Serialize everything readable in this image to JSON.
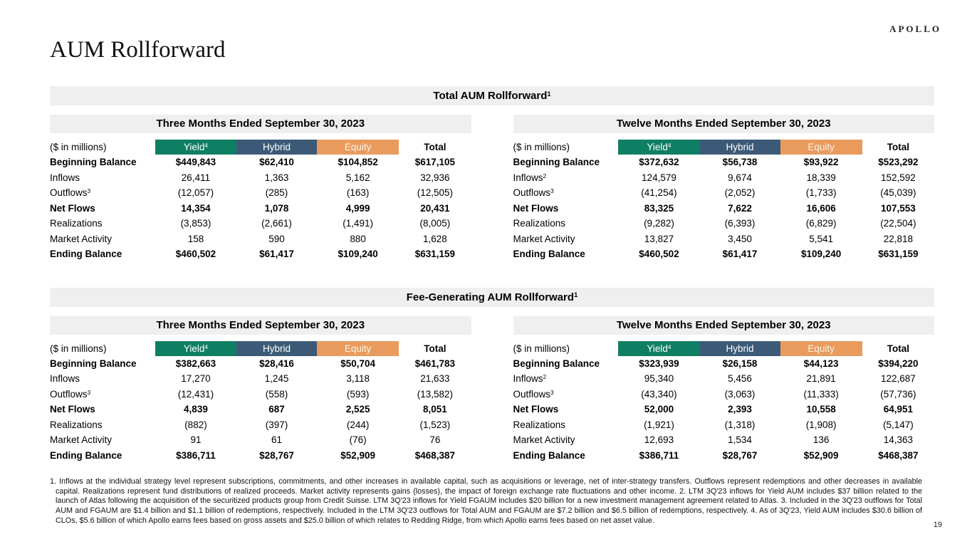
{
  "logo": "APOLLO",
  "page": {
    "title": "AUM Rollforward",
    "number": "19"
  },
  "colors": {
    "yield": "#0f7f64",
    "hybrid": "#3c5a77",
    "equity": "#e99b5e",
    "bar_gray": "#efefef",
    "equity_text": "#fbf4e4"
  },
  "sections": [
    {
      "title": "Total AUM Rollforward",
      "title_sup": "1",
      "tables": [
        {
          "period": "Three Months Ended September 30, 2023",
          "unit_label": "($ in millions)",
          "columns": [
            {
              "label": "Yield",
              "sup": "4",
              "color": "#0f7f64",
              "text_color": "#ffffff"
            },
            {
              "label": "Hybrid",
              "sup": "",
              "color": "#3c5a77",
              "text_color": "#ffffff"
            },
            {
              "label": "Equity",
              "sup": "",
              "color": "#e99b5e",
              "text_color": "#fbf4e4"
            },
            {
              "label": "Total",
              "sup": "",
              "color": "",
              "text_color": ""
            }
          ],
          "rows": [
            {
              "label": "Beginning Balance",
              "sup": "",
              "bold": true,
              "values": [
                "$449,843",
                "$62,410",
                "$104,852",
                "$617,105"
              ]
            },
            {
              "label": "Inflows",
              "sup": "",
              "bold": false,
              "values": [
                "26,411",
                "1,363",
                "5,162",
                "32,936"
              ]
            },
            {
              "label": "Outflows",
              "sup": "3",
              "bold": false,
              "values": [
                "(12,057)",
                "(285)",
                "(163)",
                "(12,505)"
              ]
            },
            {
              "label": "Net Flows",
              "sup": "",
              "bold": true,
              "values": [
                "14,354",
                "1,078",
                "4,999",
                "20,431"
              ]
            },
            {
              "label": "Realizations",
              "sup": "",
              "bold": false,
              "values": [
                "(3,853)",
                "(2,661)",
                "(1,491)",
                "(8,005)"
              ]
            },
            {
              "label": "Market Activity",
              "sup": "",
              "bold": false,
              "values": [
                "158",
                "590",
                "880",
                "1,628"
              ]
            },
            {
              "label": "Ending Balance",
              "sup": "",
              "bold": true,
              "values": [
                "$460,502",
                "$61,417",
                "$109,240",
                "$631,159"
              ]
            }
          ]
        },
        {
          "period": "Twelve Months Ended September 30, 2023",
          "unit_label": "($ in millions)",
          "columns": [
            {
              "label": "Yield",
              "sup": "4",
              "color": "#0f7f64",
              "text_color": "#ffffff"
            },
            {
              "label": "Hybrid",
              "sup": "",
              "color": "#3c5a77",
              "text_color": "#ffffff"
            },
            {
              "label": "Equity",
              "sup": "",
              "color": "#e99b5e",
              "text_color": "#fbf4e4"
            },
            {
              "label": "Total",
              "sup": "",
              "color": "",
              "text_color": ""
            }
          ],
          "rows": [
            {
              "label": "Beginning Balance",
              "sup": "",
              "bold": true,
              "values": [
                "$372,632",
                "$56,738",
                "$93,922",
                "$523,292"
              ]
            },
            {
              "label": "Inflows",
              "sup": "2",
              "bold": false,
              "values": [
                "124,579",
                "9,674",
                "18,339",
                "152,592"
              ]
            },
            {
              "label": "Outflows",
              "sup": "3",
              "bold": false,
              "values": [
                "(41,254)",
                "(2,052)",
                "(1,733)",
                "(45,039)"
              ]
            },
            {
              "label": "Net Flows",
              "sup": "",
              "bold": true,
              "values": [
                "83,325",
                "7,622",
                "16,606",
                "107,553"
              ]
            },
            {
              "label": "Realizations",
              "sup": "",
              "bold": false,
              "values": [
                "(9,282)",
                "(6,393)",
                "(6,829)",
                "(22,504)"
              ]
            },
            {
              "label": "Market Activity",
              "sup": "",
              "bold": false,
              "values": [
                "13,827",
                "3,450",
                "5,541",
                "22,818"
              ]
            },
            {
              "label": "Ending Balance",
              "sup": "",
              "bold": true,
              "values": [
                "$460,502",
                "$61,417",
                "$109,240",
                "$631,159"
              ]
            }
          ]
        }
      ]
    },
    {
      "title": "Fee-Generating AUM Rollforward",
      "title_sup": "1",
      "tables": [
        {
          "period": "Three Months Ended September 30, 2023",
          "unit_label": "($ in millions)",
          "columns": [
            {
              "label": "Yield",
              "sup": "4",
              "color": "#0f7f64",
              "text_color": "#ffffff"
            },
            {
              "label": "Hybrid",
              "sup": "",
              "color": "#3c5a77",
              "text_color": "#ffffff"
            },
            {
              "label": "Equity",
              "sup": "",
              "color": "#e99b5e",
              "text_color": "#fbf4e4"
            },
            {
              "label": "Total",
              "sup": "",
              "color": "",
              "text_color": ""
            }
          ],
          "rows": [
            {
              "label": "Beginning Balance",
              "sup": "",
              "bold": true,
              "values": [
                "$382,663",
                "$28,416",
                "$50,704",
                "$461,783"
              ]
            },
            {
              "label": "Inflows",
              "sup": "",
              "bold": false,
              "values": [
                "17,270",
                "1,245",
                "3,118",
                "21,633"
              ]
            },
            {
              "label": "Outflows",
              "sup": "3",
              "bold": false,
              "values": [
                "(12,431)",
                "(558)",
                "(593)",
                "(13,582)"
              ]
            },
            {
              "label": "Net Flows",
              "sup": "",
              "bold": true,
              "values": [
                "4,839",
                "687",
                "2,525",
                "8,051"
              ]
            },
            {
              "label": "Realizations",
              "sup": "",
              "bold": false,
              "values": [
                "(882)",
                "(397)",
                "(244)",
                "(1,523)"
              ]
            },
            {
              "label": "Market Activity",
              "sup": "",
              "bold": false,
              "values": [
                "91",
                "61",
                "(76)",
                "76"
              ]
            },
            {
              "label": "Ending Balance",
              "sup": "",
              "bold": true,
              "values": [
                "$386,711",
                "$28,767",
                "$52,909",
                "$468,387"
              ]
            }
          ]
        },
        {
          "period": "Twelve Months Ended September 30, 2023",
          "unit_label": "($ in millions)",
          "columns": [
            {
              "label": "Yield",
              "sup": "4",
              "color": "#0f7f64",
              "text_color": "#ffffff"
            },
            {
              "label": "Hybrid",
              "sup": "",
              "color": "#3c5a77",
              "text_color": "#ffffff"
            },
            {
              "label": "Equity",
              "sup": "",
              "color": "#e99b5e",
              "text_color": "#fbf4e4"
            },
            {
              "label": "Total",
              "sup": "",
              "color": "",
              "text_color": ""
            }
          ],
          "rows": [
            {
              "label": "Beginning Balance",
              "sup": "",
              "bold": true,
              "values": [
                "$323,939",
                "$26,158",
                "$44,123",
                "$394,220"
              ]
            },
            {
              "label": "Inflows",
              "sup": "2",
              "bold": false,
              "values": [
                "95,340",
                "5,456",
                "21,891",
                "122,687"
              ]
            },
            {
              "label": "Outflows",
              "sup": "3",
              "bold": false,
              "values": [
                "(43,340)",
                "(3,063)",
                "(11,333)",
                "(57,736)"
              ]
            },
            {
              "label": "Net Flows",
              "sup": "",
              "bold": true,
              "values": [
                "52,000",
                "2,393",
                "10,558",
                "64,951"
              ]
            },
            {
              "label": "Realizations",
              "sup": "",
              "bold": false,
              "values": [
                "(1,921)",
                "(1,318)",
                "(1,908)",
                "(5,147)"
              ]
            },
            {
              "label": "Market Activity",
              "sup": "",
              "bold": false,
              "values": [
                "12,693",
                "1,534",
                "136",
                "14,363"
              ]
            },
            {
              "label": "Ending Balance",
              "sup": "",
              "bold": true,
              "values": [
                "$386,711",
                "$28,767",
                "$52,909",
                "$468,387"
              ]
            }
          ]
        }
      ]
    }
  ],
  "footnotes": "1. Inflows at the individual strategy level represent subscriptions, commitments, and other increases in available capital, such as acquisitions or leverage, net of inter-strategy transfers. Outflows represent redemptions and other decreases in available capital. Realizations represent fund distributions of realized proceeds. Market activity represents gains (losses), the impact of foreign exchange rate fluctuations and other income. 2. LTM 3Q'23 inflows for Yield AUM includes $37 billion related to the launch of Atlas following the acquisition of the securitized products group from Credit Suisse. LTM 3Q'23 inflows for Yield FGAUM includes $20 billion for a new investment management agreement related to Atlas. 3. Included in the 3Q'23 outflows for Total AUM and FGAUM are $1.4 billion and $1.1 billion of redemptions, respectively. Included in the LTM 3Q'23 outflows for Total AUM and FGAUM are $7.2 billion and $6.5 billion of redemptions, respectively. 4. As of 3Q'23, Yield AUM includes $30.6 billion of CLOs, $5.6 billion of which Apollo earns fees based on gross assets and $25.0 billion of which relates to Redding Ridge, from which Apollo earns fees based on net asset value.",
  "chart_data": {
    "type": "table",
    "note": "Four AUM rollforward tables; values mirrored from sections[].tables[].rows[]"
  }
}
